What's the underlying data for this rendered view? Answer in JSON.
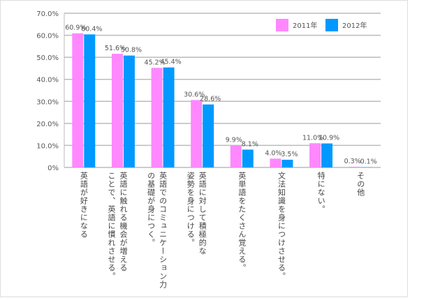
{
  "chart_data": {
    "type": "bar",
    "categories": [
      "英語が好きになる",
      "英語に触れる機会が増える\nことで、英語に慣れさせる。",
      "英語でのコミュニケーション力\nの基礎が身につく。",
      "英語に対して積極的な\n姿勢を身につける。",
      "英単語をたくさん覚える。",
      "文法知識を身につけさせる。",
      "特にない。",
      "その他"
    ],
    "series": [
      {
        "name": "2011年",
        "color": "#ff88ff",
        "values": [
          60.9,
          51.6,
          45.2,
          30.6,
          9.9,
          4.0,
          11.0,
          0.3
        ],
        "labels": [
          "60.9%",
          "51.6%",
          "45.2%",
          "30.6%",
          "9.9%",
          "4.0%",
          "11.0%",
          "0.3%"
        ]
      },
      {
        "name": "2012年",
        "color": "#0099ff",
        "values": [
          60.4,
          50.8,
          45.4,
          28.6,
          8.1,
          3.5,
          10.9,
          0.1
        ],
        "labels": [
          "60.4%",
          "50.8%",
          "45.4%",
          "28.6%",
          "8.1%",
          "3.5%",
          "10.9%",
          "0.1%"
        ]
      }
    ],
    "yticks": [
      "0%",
      "10.0%",
      "20.0%",
      "30.0%",
      "40.0%",
      "50.0%",
      "60.0%",
      "70.0%"
    ],
    "ylim": [
      0,
      70
    ],
    "grid": true,
    "legend": "top-right"
  }
}
